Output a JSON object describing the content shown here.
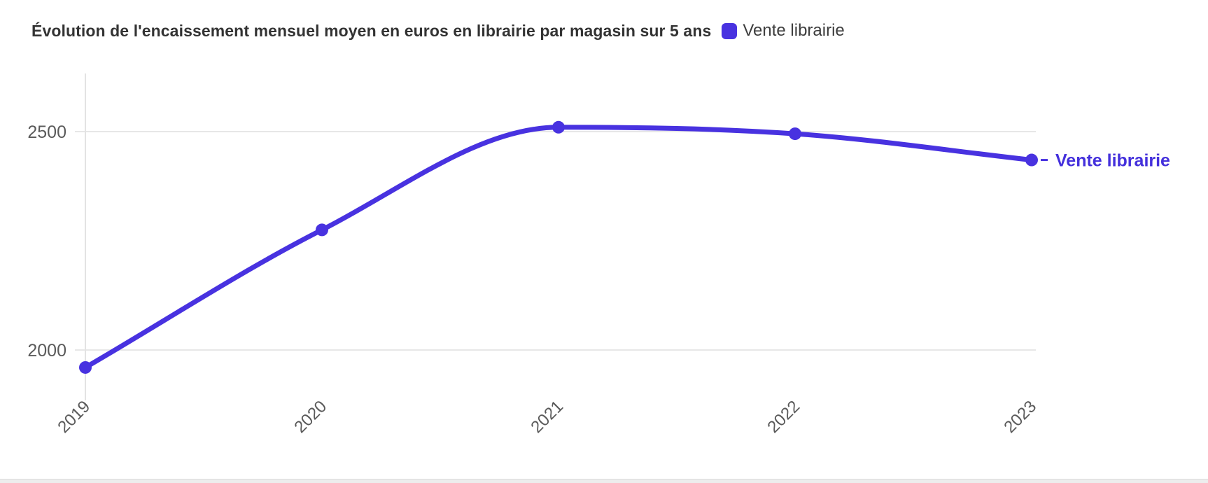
{
  "header": {
    "title": "Évolution de l'encaissement mensuel moyen en euros en librairie par magasin sur 5 ans",
    "legend": {
      "label": "Vente librairie",
      "swatch_color": "#4832E0"
    }
  },
  "chart_data": {
    "type": "line",
    "title": "Évolution de l'encaissement mensuel moyen en euros en librairie par magasin sur 5 ans",
    "categories": [
      "2019",
      "2020",
      "2021",
      "2022",
      "2023"
    ],
    "series": [
      {
        "name": "Vente librairie",
        "values": [
          1960,
          2275,
          2510,
          2495,
          2435
        ],
        "color": "#4832E0",
        "smooth": true,
        "point_style": "circle",
        "end_label": "Vente librairie"
      }
    ],
    "xlabel": "",
    "ylabel": "",
    "yticks": [
      2000,
      2500
    ],
    "ylim": [
      1880,
      2640
    ],
    "grid": "horizontal",
    "legend_position": "top",
    "x_tick_rotation": -45
  },
  "colors": {
    "accent": "#4832E0",
    "end_label_text": "#4430DC",
    "grid": "#e7e7e7",
    "axis_line": "#e3e3e3",
    "tick_label": "#5a5a5a",
    "title_text": "#333333",
    "legend_text": "#3d3d3d",
    "background": "#ffffff",
    "footer_strip": "#ededed"
  }
}
